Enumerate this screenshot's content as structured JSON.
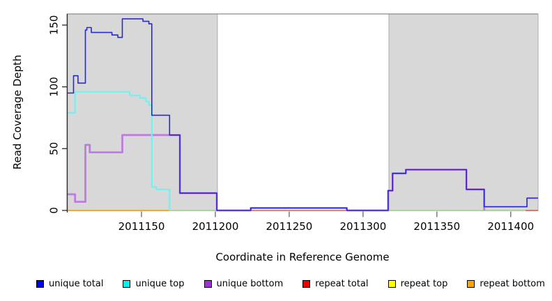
{
  "chart_data": {
    "type": "line",
    "subtype": "step-coverage-plot",
    "title": "",
    "xlabel": "Coordinate in Reference Genome",
    "ylabel": "Read Coverage Depth",
    "x_axis": {
      "min": 2011099.5,
      "max": 2011418.5,
      "ticks": [
        2011150,
        2011200,
        2011250,
        2011300,
        2011350,
        2011400
      ]
    },
    "y_axis": {
      "min": 0,
      "max": 159,
      "ticks": [
        0,
        50,
        100,
        150
      ]
    },
    "grid": false,
    "legend_position": "bottom",
    "shaded_regions": [
      {
        "from": 2011099.5,
        "to": 2011201.4,
        "fill": "#d8d8d8",
        "stroke": "#aaaaaa"
      },
      {
        "from": 2011317.5,
        "to": 2011418.5,
        "fill": "#d8d8d8",
        "stroke": "#aaaaaa"
      }
    ],
    "top_border_color": "#8c8c8c",
    "series": [
      {
        "name": "unique total",
        "legend_color": "#0000ee",
        "line_color": "#2a2acc",
        "line_width": 1.6,
        "paths": [
          {
            "pts": [
              [
                2011099.5,
                95
              ],
              [
                2011104,
                109
              ],
              [
                2011107,
                103
              ],
              [
                2011112,
                146
              ],
              [
                2011113,
                148
              ],
              [
                2011116,
                144
              ],
              [
                2011130,
                142
              ],
              [
                2011134,
                140
              ],
              [
                2011137,
                155
              ],
              [
                2011151,
                153
              ],
              [
                2011155,
                151
              ],
              [
                2011157,
                77
              ],
              [
                2011169,
                61
              ],
              [
                2011176,
                14
              ],
              [
                2011201,
                0
              ],
              [
                2011224,
                2
              ],
              [
                2011289,
                0
              ],
              [
                2011317,
                16
              ],
              [
                2011320,
                30
              ],
              [
                2011329,
                33
              ],
              [
                2011370,
                17
              ],
              [
                2011382,
                3
              ],
              [
                2011411,
                10
              ]
            ],
            "end": 2011418.5
          }
        ]
      },
      {
        "name": "unique top",
        "legend_color": "#00eeee",
        "line_color": "#76efef",
        "line_width": 2.2,
        "paths": [
          {
            "pts": [
              [
                2011099.5,
                79
              ],
              [
                2011105,
                96
              ],
              [
                2011142,
                93
              ],
              [
                2011149,
                91
              ],
              [
                2011153,
                88
              ],
              [
                2011155,
                85
              ],
              [
                2011157,
                19
              ],
              [
                2011160,
                17
              ],
              [
                2011169,
                0
              ]
            ],
            "end": 2011169
          },
          {
            "pts": [
              [
                2011382,
                3
              ],
              [
                2011411,
                10
              ]
            ],
            "end": 2011418.5
          }
        ]
      },
      {
        "name": "unique bottom",
        "legend_color": "#9933cc",
        "line_color": "#be7be0",
        "line_width": 2.8,
        "paths": [
          {
            "pts": [
              [
                2011099.5,
                13
              ],
              [
                2011105,
                7
              ],
              [
                2011112,
                53
              ],
              [
                2011115,
                47
              ],
              [
                2011137,
                61
              ],
              [
                2011176,
                14
              ],
              [
                2011201,
                0
              ],
              [
                2011224,
                2
              ],
              [
                2011289,
                0
              ],
              [
                2011317,
                16
              ],
              [
                2011320,
                30
              ],
              [
                2011329,
                33
              ],
              [
                2011370,
                17
              ],
              [
                2011382,
                0
              ]
            ],
            "end": 2011382
          }
        ]
      },
      {
        "name": "repeat total",
        "legend_color": "#ee0000",
        "line_color": "#e25858",
        "line_width": 1.4,
        "paths": [
          {
            "pts": [
              [
                2011224,
                0
              ]
            ],
            "end": 2011289
          },
          {
            "pts": [
              [
                2011410,
                0
              ]
            ],
            "end": 2011418.5
          }
        ]
      },
      {
        "name": "repeat top",
        "legend_color": "#ffff00",
        "line_color": "#ffff00",
        "line_width": 1.2,
        "paths": [
          {
            "pts": [
              [
                2011099.5,
                0
              ]
            ],
            "end": 2011418.5
          }
        ]
      },
      {
        "name": "repeat bottom",
        "legend_color": "#ffa500",
        "line_color": "#ff9d00",
        "line_width": 1.6,
        "paths": [
          {
            "pts": [
              [
                2011099.5,
                0
              ]
            ],
            "end": 2011169
          }
        ]
      }
    ],
    "overlap_artifacts": [
      {
        "name": "cyan-yellow-overlap-zero-line",
        "color": "#9fd89f",
        "width": 1.4,
        "paths": [
          {
            "pts": [
              [
                2011169,
                0
              ]
            ],
            "end": 2011224
          },
          {
            "pts": [
              [
                2011289,
                0
              ]
            ],
            "end": 2011410
          }
        ]
      }
    ],
    "draw_order": [
      "repeat top",
      "repeat total",
      "overlap:0",
      "repeat bottom",
      "unique bottom",
      "unique top",
      "unique total"
    ]
  },
  "legend": {
    "items": [
      {
        "label": "unique total",
        "color": "#0000ee"
      },
      {
        "label": "unique top",
        "color": "#00eeee"
      },
      {
        "label": "unique bottom",
        "color": "#9933cc"
      },
      {
        "label": "repeat total",
        "color": "#ee0000"
      },
      {
        "label": "repeat top",
        "color": "#ffff00"
      },
      {
        "label": "repeat bottom",
        "color": "#ffa500"
      }
    ]
  },
  "layout_colors": {
    "axis_line": "#2b2b2b",
    "x_tick": "#666666",
    "tick_label": "#000000"
  }
}
